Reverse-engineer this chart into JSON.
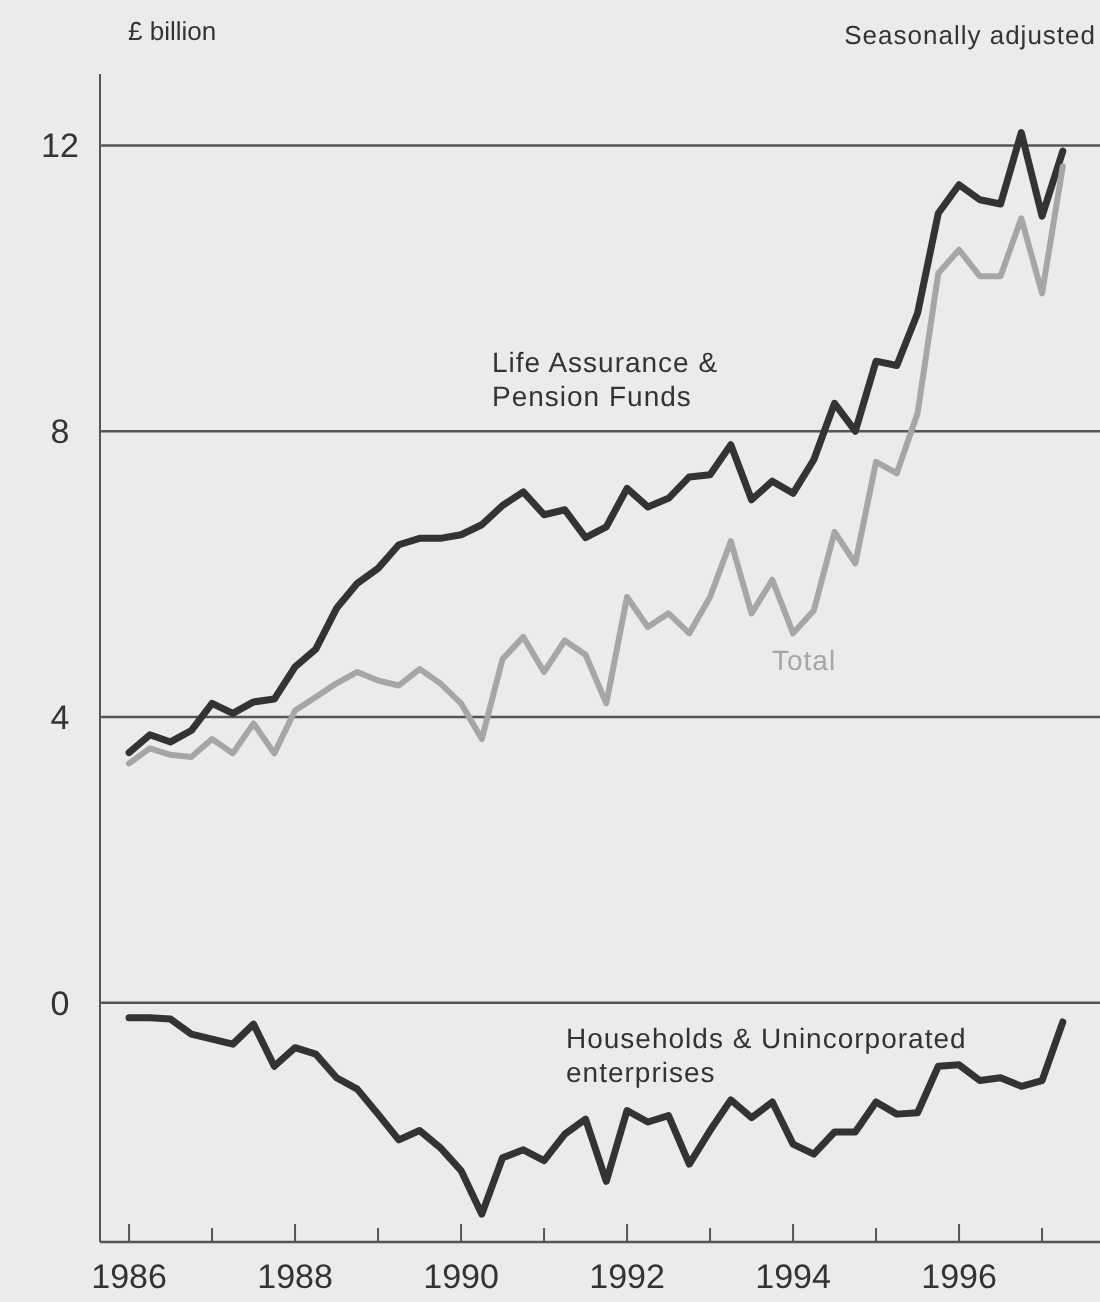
{
  "chart_data": {
    "type": "line",
    "ylabel": "£ billion",
    "annotations": [
      "Seasonally adjusted"
    ],
    "x": [
      1986,
      1986.25,
      1986.5,
      1986.75,
      1987,
      1987.25,
      1987.5,
      1987.75,
      1988,
      1988.25,
      1988.5,
      1988.75,
      1989,
      1989.25,
      1989.5,
      1989.75,
      1990,
      1990.25,
      1990.5,
      1990.75,
      1991,
      1991.25,
      1991.5,
      1991.75,
      1992,
      1992.25,
      1992.5,
      1992.75,
      1993,
      1993.25,
      1993.5,
      1993.75,
      1994,
      1994.25,
      1994.5,
      1994.75,
      1995,
      1995.25,
      1995.5,
      1995.75,
      1996,
      1996.25,
      1996.5,
      1996.75,
      1997,
      1997.25
    ],
    "series": [
      {
        "name": "Life Assurance & Pension Funds",
        "color": "#333333",
        "values": [
          3.5,
          3.75,
          3.65,
          3.81,
          4.19,
          4.05,
          4.21,
          4.25,
          4.7,
          4.95,
          5.52,
          5.87,
          6.08,
          6.41,
          6.5,
          6.5,
          6.55,
          6.69,
          6.96,
          7.15,
          6.83,
          6.9,
          6.51,
          6.66,
          7.2,
          6.94,
          7.06,
          7.36,
          7.39,
          7.81,
          7.04,
          7.3,
          7.13,
          7.6,
          8.39,
          8.0,
          8.98,
          8.92,
          9.65,
          11.05,
          11.45,
          11.24,
          11.18,
          12.18,
          11.01,
          11.92
        ]
      },
      {
        "name": "Total",
        "color": "#a6a6a6",
        "values": [
          3.35,
          3.56,
          3.47,
          3.44,
          3.69,
          3.49,
          3.91,
          3.49,
          4.09,
          4.28,
          4.47,
          4.63,
          4.51,
          4.44,
          4.67,
          4.47,
          4.19,
          3.69,
          4.81,
          5.12,
          4.63,
          5.07,
          4.87,
          4.19,
          5.68,
          5.26,
          5.45,
          5.17,
          5.68,
          6.46,
          5.45,
          5.92,
          5.17,
          5.49,
          6.59,
          6.15,
          7.57,
          7.41,
          8.25,
          10.21,
          10.54,
          10.17,
          10.17,
          10.98,
          9.93,
          11.71
        ]
      },
      {
        "name": "Households & Unincorporated enterprises",
        "color": "#333333",
        "values": [
          -0.21,
          -0.21,
          -0.23,
          -0.44,
          -0.51,
          -0.58,
          -0.3,
          -0.89,
          -0.63,
          -0.72,
          -1.05,
          -1.21,
          -1.56,
          -1.92,
          -1.79,
          -2.03,
          -2.35,
          -2.96,
          -2.17,
          -2.06,
          -2.21,
          -1.84,
          -1.63,
          -2.5,
          -1.51,
          -1.67,
          -1.58,
          -2.26,
          -1.79,
          -1.36,
          -1.61,
          -1.39,
          -1.98,
          -2.12,
          -1.81,
          -1.81,
          -1.39,
          -1.56,
          -1.54,
          -0.89,
          -0.87,
          -1.09,
          -1.05,
          -1.17,
          -1.09,
          -0.27
        ]
      }
    ],
    "xlim": [
      1985.65,
      1997.65
    ],
    "ylim": [
      -3.35,
      13
    ],
    "xticks": [
      1986,
      {
        "value": 1987,
        "label": null
      },
      1988,
      {
        "value": 1989,
        "label": null
      },
      1990,
      {
        "value": 1991,
        "label": null
      },
      1992,
      {
        "value": 1993,
        "label": null
      },
      1994,
      {
        "value": 1995,
        "label": null
      },
      1996,
      {
        "value": 1997,
        "label": null
      }
    ],
    "yticks": [
      0,
      4,
      8,
      12
    ],
    "grid": "y",
    "line_style": "solid",
    "marker": "none"
  }
}
